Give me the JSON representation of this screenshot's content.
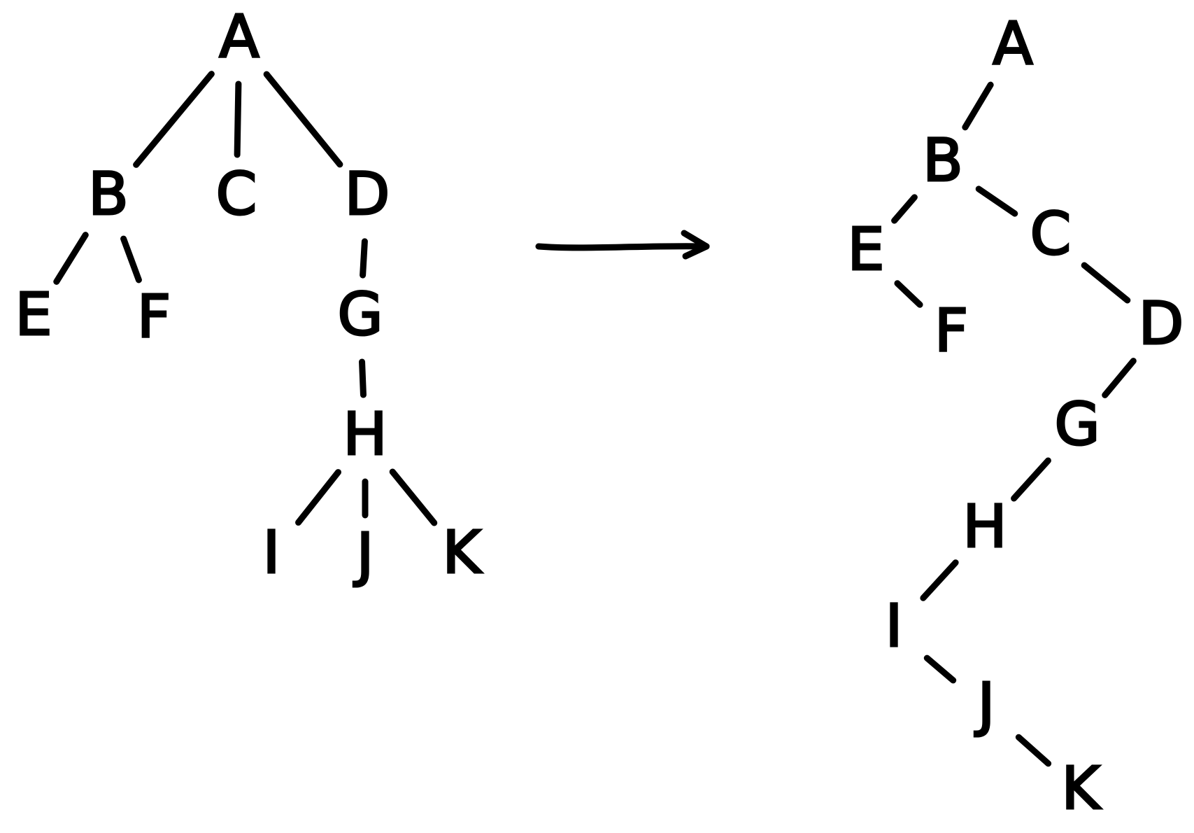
{
  "colors": {
    "ink": "#000000",
    "background": "#ffffff"
  },
  "general_tree": {
    "nodes": [
      {
        "id": "A",
        "label": "A"
      },
      {
        "id": "B",
        "label": "B"
      },
      {
        "id": "C",
        "label": "C"
      },
      {
        "id": "D",
        "label": "D"
      },
      {
        "id": "E",
        "label": "E"
      },
      {
        "id": "F",
        "label": "F"
      },
      {
        "id": "G",
        "label": "G"
      },
      {
        "id": "H",
        "label": "H"
      },
      {
        "id": "I",
        "label": "I"
      },
      {
        "id": "J",
        "label": "J"
      },
      {
        "id": "K",
        "label": "K"
      }
    ],
    "edges": [
      [
        "A",
        "B"
      ],
      [
        "A",
        "C"
      ],
      [
        "A",
        "D"
      ],
      [
        "B",
        "E"
      ],
      [
        "B",
        "F"
      ],
      [
        "D",
        "G"
      ],
      [
        "G",
        "H"
      ],
      [
        "H",
        "I"
      ],
      [
        "H",
        "J"
      ],
      [
        "H",
        "K"
      ]
    ]
  },
  "arrow_icon": "right-arrow-icon",
  "binary_tree": {
    "nodes": [
      {
        "id": "A",
        "label": "A"
      },
      {
        "id": "B",
        "label": "B"
      },
      {
        "id": "E",
        "label": "E"
      },
      {
        "id": "F",
        "label": "F"
      },
      {
        "id": "C",
        "label": "C"
      },
      {
        "id": "D",
        "label": "D"
      },
      {
        "id": "G",
        "label": "G"
      },
      {
        "id": "H",
        "label": "H"
      },
      {
        "id": "I",
        "label": "I"
      },
      {
        "id": "J",
        "label": "J"
      },
      {
        "id": "K",
        "label": "K"
      }
    ],
    "edges": [
      [
        "A",
        "B"
      ],
      [
        "B",
        "E"
      ],
      [
        "B",
        "C"
      ],
      [
        "E",
        "F"
      ],
      [
        "C",
        "D"
      ],
      [
        "D",
        "G"
      ],
      [
        "G",
        "H"
      ],
      [
        "H",
        "I"
      ],
      [
        "I",
        "J"
      ],
      [
        "J",
        "K"
      ]
    ]
  }
}
